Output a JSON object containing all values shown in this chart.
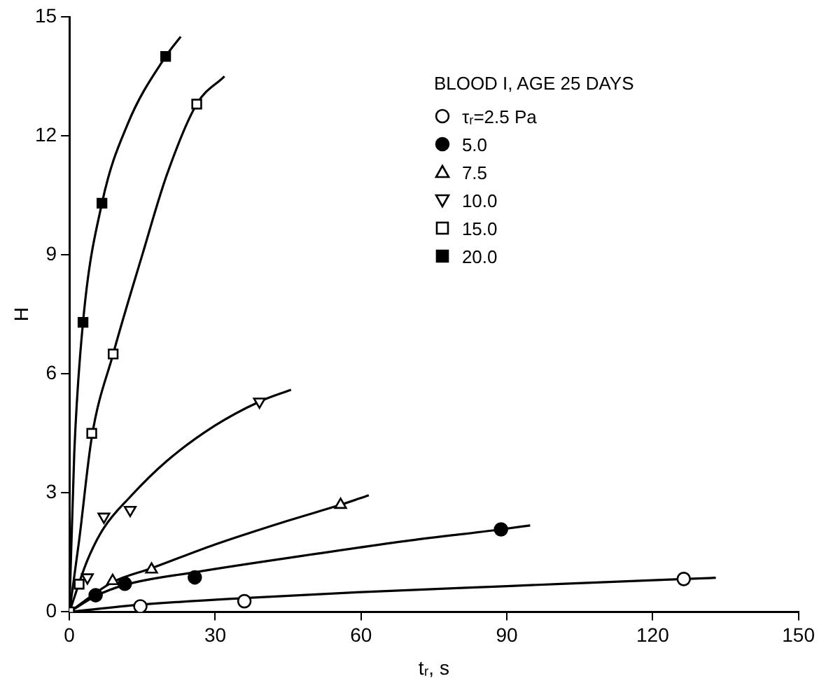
{
  "chart_data": {
    "type": "scatter",
    "xlabel": "tᵣ, s",
    "ylabel": "H",
    "legend_title": "BLOOD I, AGE 25 DAYS",
    "legend": "top right",
    "grid": false,
    "xlim": [
      0,
      150
    ],
    "xticks": [
      0,
      30,
      60,
      90,
      120,
      150
    ],
    "ylim": [
      0,
      15
    ],
    "yticks": [
      0,
      3,
      6,
      9,
      12,
      15
    ],
    "series": [
      {
        "name": "τᵣ=2.5 Pa",
        "marker": "circle",
        "color": "#ffffff",
        "x": [
          14.6,
          36,
          126.4
        ],
        "values": [
          0.14,
          0.27,
          0.83
        ]
      },
      {
        "name": "5.0",
        "marker": "circle",
        "color": "#000000",
        "x": [
          5.4,
          11.4,
          25.8,
          88.8
        ],
        "values": [
          0.42,
          0.71,
          0.87,
          2.08
        ]
      },
      {
        "name": "7.5",
        "marker": "triangle",
        "color": "#ffffff",
        "x": [
          8.9,
          16.9,
          55.8
        ],
        "values": [
          0.78,
          1.07,
          2.7
        ]
      },
      {
        "name": "10.0",
        "marker": "triangle",
        "color": "#ffffff",
        "x": [
          3.7,
          7.1,
          12.5,
          39.1
        ],
        "values": [
          0.87,
          2.4,
          2.57,
          5.3
        ]
      },
      {
        "name": "15.0",
        "marker": "square",
        "color": "#ffffff",
        "x": [
          0,
          2,
          4.6,
          9,
          26.2
        ],
        "values": [
          0,
          0.7,
          4.5,
          6.5,
          12.8
        ]
      },
      {
        "name": "20.0",
        "marker": "square",
        "color": "#000000",
        "x": [
          2.8,
          6.7,
          19.8
        ],
        "values": [
          7.3,
          10.3,
          14
        ]
      },
      {
        "type": "line",
        "marker": "none",
        "color": "#000000",
        "x": [
          0,
          14.6,
          36,
          60,
          90,
          126.4,
          133
        ],
        "values": [
          0,
          0.18,
          0.35,
          0.5,
          0.65,
          0.83,
          0.86
        ]
      },
      {
        "type": "line",
        "marker": "none",
        "color": "#000000",
        "x": [
          0,
          5.4,
          11.4,
          25.8,
          50,
          70,
          88.8,
          94.8
        ],
        "values": [
          0,
          0.4,
          0.68,
          1.0,
          1.45,
          1.8,
          2.08,
          2.18
        ]
      },
      {
        "type": "line",
        "marker": "none",
        "color": "#000000",
        "x": [
          0,
          8.9,
          16.9,
          30,
          45,
          55.8,
          61.6
        ],
        "values": [
          0,
          0.75,
          1.1,
          1.7,
          2.3,
          2.7,
          2.94
        ]
      },
      {
        "type": "line",
        "marker": "none",
        "color": "#000000",
        "x": [
          0,
          3.7,
          7,
          12.5,
          20,
          30,
          39.1,
          45.6
        ],
        "values": [
          0,
          1.3,
          2.1,
          2.9,
          3.8,
          4.7,
          5.3,
          5.6
        ]
      },
      {
        "type": "line",
        "marker": "none",
        "color": "#000000",
        "x": [
          0,
          2,
          4.6,
          9,
          15,
          20,
          26.2,
          31.9
        ],
        "values": [
          0,
          1.8,
          4.4,
          6.5,
          9,
          11,
          12.8,
          13.5
        ]
      },
      {
        "type": "line",
        "marker": "none",
        "color": "#000000",
        "x": [
          0,
          1,
          2.8,
          6.7,
          12,
          19.8,
          22.9
        ],
        "values": [
          0,
          4,
          7.3,
          10.3,
          12.3,
          14,
          14.5
        ]
      }
    ]
  }
}
